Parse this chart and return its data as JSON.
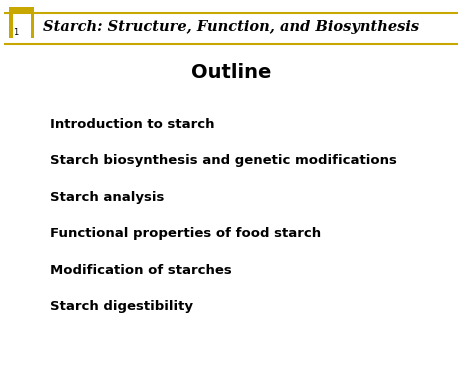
{
  "title_header": "Starch: Structure, Function, and Biosynthesis",
  "slide_title": "Outline",
  "bullet_items": [
    "Introduction to starch",
    "Starch biosynthesis and genetic modifications",
    "Starch analysis",
    "Functional properties of food starch",
    "Modification of starches",
    "Starch digestibility"
  ],
  "background_color": "#ffffff",
  "header_bg_color": "#ffffff",
  "gold_color": "#C8A800",
  "gold_dark": "#B89800",
  "header_line_color": "#C8A800",
  "header_text_color": "#000000",
  "slide_title_color": "#000000",
  "bullet_text_color": "#000000",
  "page_number": "1",
  "header_font_size": 10.5,
  "slide_title_font_size": 14,
  "bullet_font_size": 9.5
}
